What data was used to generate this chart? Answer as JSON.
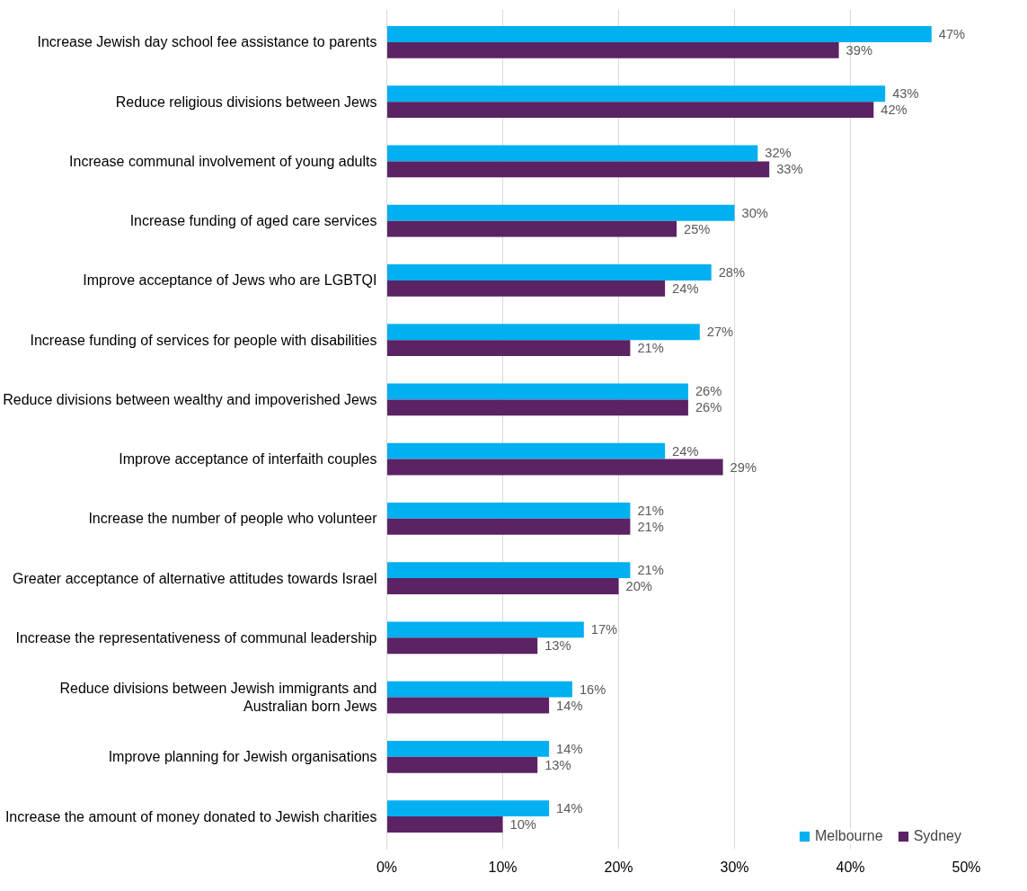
{
  "chart_data": {
    "type": "bar",
    "orientation": "horizontal",
    "categories": [
      "Increase Jewish day school fee assistance to parents",
      "Reduce religious divisions between Jews",
      "Increase communal involvement of young adults",
      "Increase funding of aged care services",
      "Improve acceptance of Jews who are LGBTQI",
      "Increase funding of services for people with disabilities",
      "Reduce divisions between wealthy and impoverished Jews",
      "Improve acceptance of interfaith couples",
      "Increase the number of people who volunteer",
      "Greater acceptance of alternative attitudes towards Israel",
      "Increase the representativeness of communal leadership",
      "Reduce divisions between Jewish immigrants and\nAustralian born Jews",
      "Improve planning for Jewish organisations",
      "Increase the amount of money donated to Jewish charities"
    ],
    "series": [
      {
        "name": "Melbourne",
        "color": "#00b0f0",
        "values": [
          47,
          43,
          32,
          30,
          28,
          27,
          26,
          24,
          21,
          21,
          17,
          16,
          14,
          14
        ],
        "value_labels": [
          "47%",
          "43%",
          "32%",
          "30%",
          "28%",
          "27%",
          "26%",
          "24%",
          "21%",
          "21%",
          "17%",
          "16%",
          "14%",
          "14%"
        ]
      },
      {
        "name": "Sydney",
        "color": "#5b2363",
        "values": [
          39,
          42,
          33,
          25,
          24,
          21,
          26,
          29,
          21,
          20,
          13,
          14,
          13,
          10
        ],
        "value_labels": [
          "39%",
          "42%",
          "33%",
          "25%",
          "24%",
          "21%",
          "26%",
          "29%",
          "21%",
          "20%",
          "13%",
          "14%",
          "13%",
          "10%"
        ]
      }
    ],
    "xlim": [
      0,
      50
    ],
    "xticks": [
      {
        "value": 0,
        "label": "0%"
      },
      {
        "value": 10,
        "label": "10%"
      },
      {
        "value": 20,
        "label": "20%"
      },
      {
        "value": 30,
        "label": "30%"
      },
      {
        "value": 40,
        "label": "40%"
      },
      {
        "value": 50,
        "label": "50%"
      }
    ],
    "grid": "x",
    "legend": "bottom right"
  }
}
